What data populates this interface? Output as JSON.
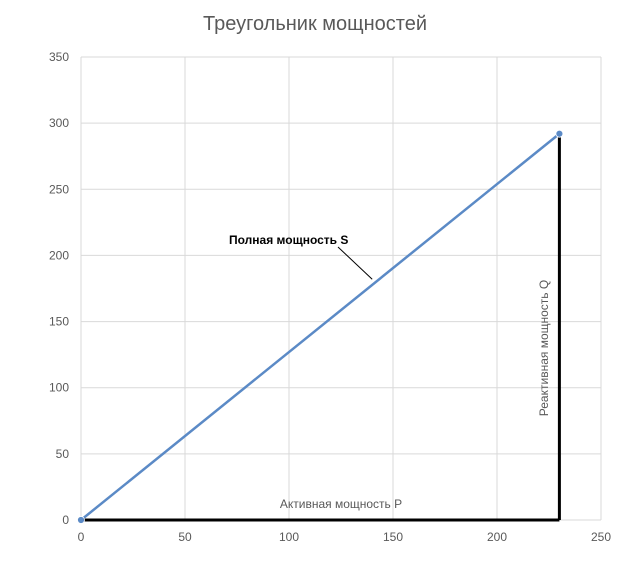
{
  "chart_data": {
    "type": "scatter",
    "title": "Треугольник мощностей",
    "xlim": [
      0,
      250
    ],
    "ylim": [
      0,
      350
    ],
    "x_ticks": [
      "0",
      "50",
      "100",
      "150",
      "200",
      "250"
    ],
    "y_ticks": [
      "0",
      "50",
      "100",
      "150",
      "200",
      "250",
      "300",
      "350"
    ],
    "grid": true,
    "legend": "none",
    "series": [
      {
        "points": [
          [
            0,
            0
          ],
          [
            230,
            292
          ]
        ],
        "color": "#5b8ac6",
        "markers": true,
        "line": true
      }
    ],
    "triangle_legs": [
      {
        "from": [
          0,
          0
        ],
        "to": [
          230,
          0
        ],
        "color": "#000000"
      },
      {
        "from": [
          230,
          0
        ],
        "to": [
          230,
          292
        ],
        "color": "#000000"
      }
    ],
    "annotations": {
      "hypotenuse": {
        "text": "Полная мощность S",
        "anchor": [
          140,
          182
        ]
      },
      "horizontal": {
        "text": "Активная мощность P"
      },
      "vertical": {
        "text": "Реактивная мощность Q"
      }
    }
  }
}
